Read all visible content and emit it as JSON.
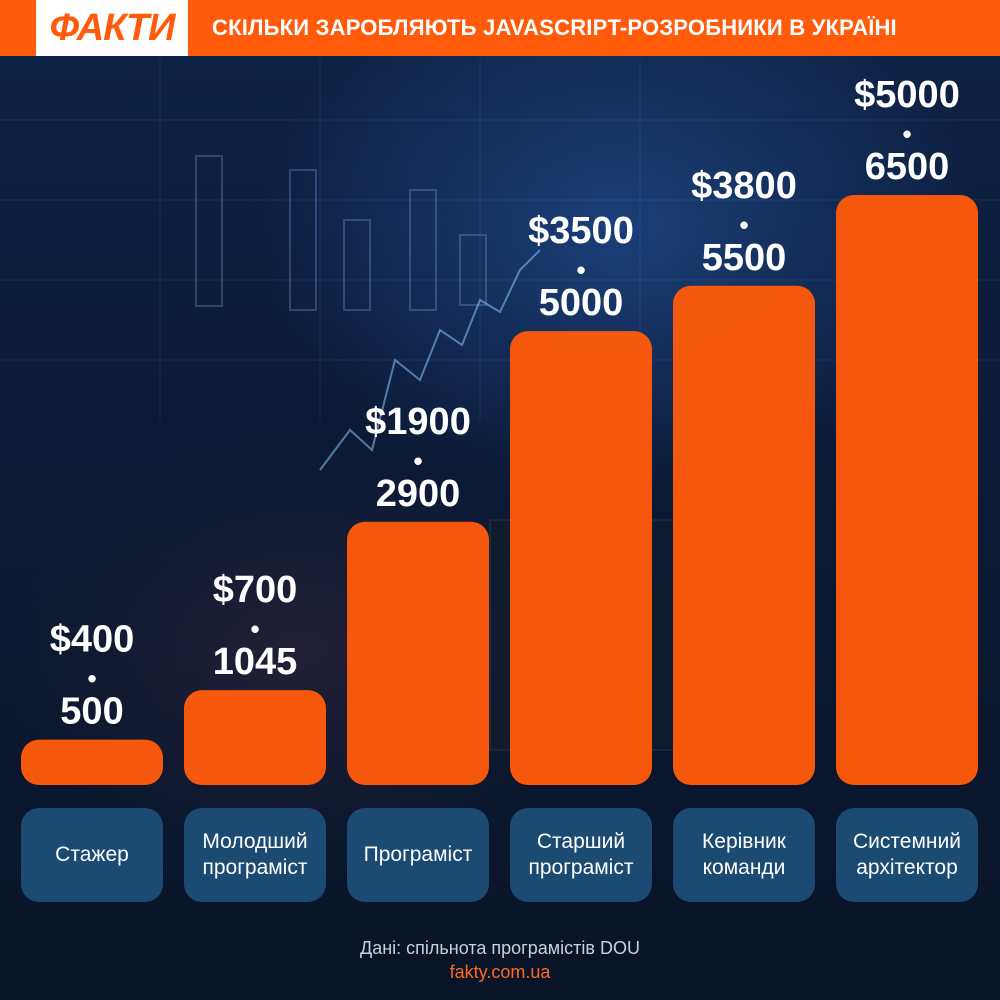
{
  "header": {
    "logo": "ФАКТИ",
    "title": "СКІЛЬКИ ЗАРОБЛЯЮТЬ JAVASCRIPT-РОЗРОБНИКИ В УКРАЇНІ"
  },
  "chart_data": {
    "type": "bar",
    "title": "СКІЛЬКИ ЗАРОБЛЯЮТЬ JAVASCRIPT-РОЗРОБНИКИ В УКРАЇНІ",
    "xlabel": "",
    "ylabel": "",
    "currency": "$",
    "separator": "•",
    "categories": [
      "Стажер",
      "Молодший програміст",
      "Програміст",
      "Старший програміст",
      "Керівник команди",
      "Системний архітектор"
    ],
    "category_lines": [
      [
        "Стажер"
      ],
      [
        "Молодший",
        "програміст"
      ],
      [
        "Програміст"
      ],
      [
        "Старший",
        "програміст"
      ],
      [
        "Керівник",
        "команди"
      ],
      [
        "Системний",
        "архітектор"
      ]
    ],
    "series": [
      {
        "name": "min",
        "values": [
          400,
          700,
          1900,
          3500,
          3800,
          5000
        ]
      },
      {
        "name": "max",
        "values": [
          500,
          1045,
          2900,
          5000,
          5500,
          6500
        ]
      }
    ],
    "ylim": [
      0,
      6500
    ],
    "bar_color": "#ff5b0a"
  },
  "footer": {
    "source": "Дані: спільнота програмістів DOU",
    "site": "fakty.com.ua"
  },
  "colors": {
    "accent": "#ff5b0a",
    "category_box": "#1b4a73",
    "text": "#ffffff"
  }
}
